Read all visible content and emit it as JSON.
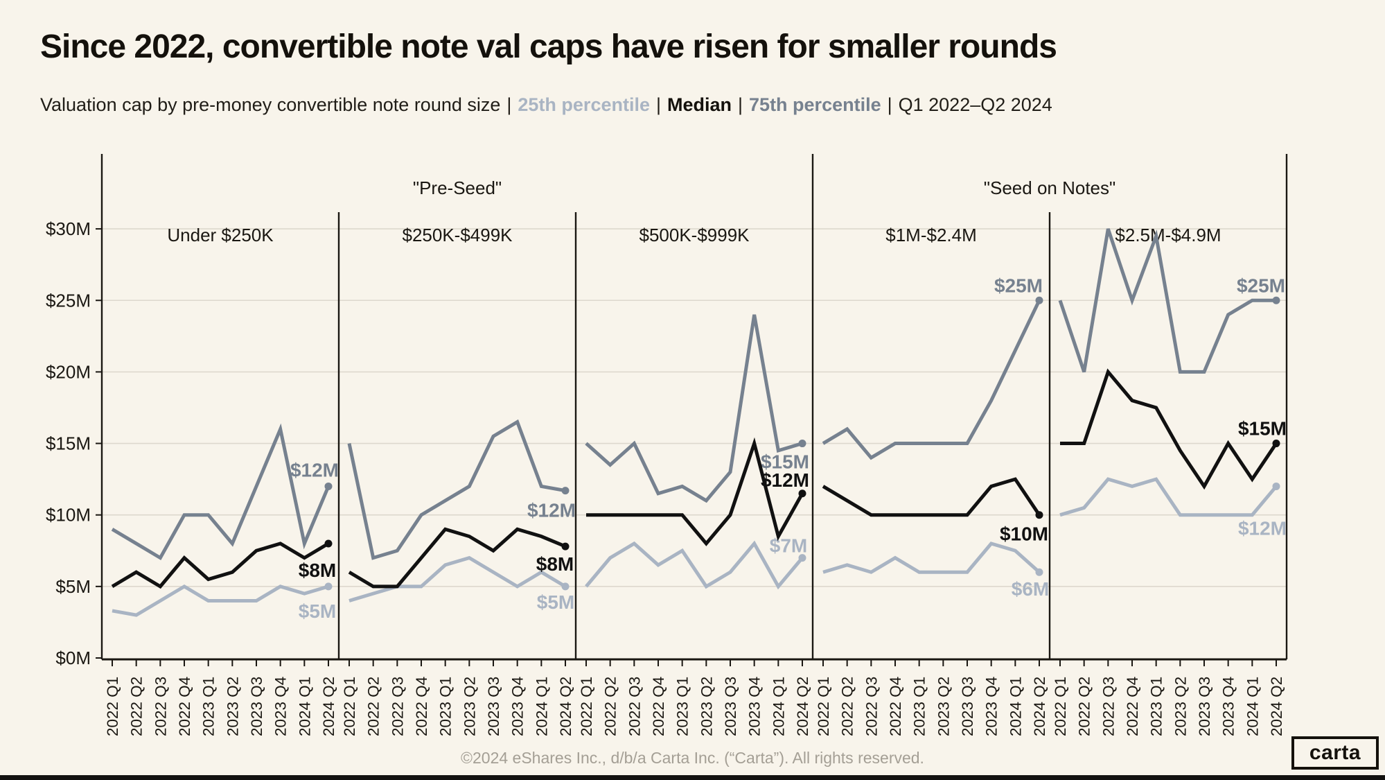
{
  "page": {
    "title": "Since 2022, convertible note val caps have risen for smaller rounds",
    "subtitle_prefix": "Valuation cap by pre-money convertible note round size",
    "separator": "|",
    "legend": {
      "p25": "25th percentile",
      "median": "Median",
      "p75": "75th percentile"
    },
    "period": "Q1 2022–Q2 2024",
    "footer": "©2024 eShares Inc., d/b/a Carta Inc. (“Carta”). All rights reserved.",
    "logo_text": "carta"
  },
  "colors": {
    "background": "#f8f4eb",
    "text": "#1a1712",
    "grid": "#ddd8cd",
    "axis": "#1a1712",
    "p75": "#76818f",
    "median": "#111111",
    "p25": "#a9b4c3",
    "footer_text": "#a49f95"
  },
  "chart_data": {
    "type": "line",
    "title": "Since 2022, convertible note val caps have risen for smaller rounds",
    "x_labels": [
      "2022 Q1",
      "2022 Q2",
      "2022 Q3",
      "2022 Q4",
      "2023 Q1",
      "2023 Q2",
      "2023 Q3",
      "2023 Q4",
      "2024 Q1",
      "2024 Q2"
    ],
    "ylim": [
      0,
      30
    ],
    "y_ticks": [
      {
        "value": 0,
        "label": "$0M"
      },
      {
        "value": 5,
        "label": "$5M"
      },
      {
        "value": 10,
        "label": "$10M"
      },
      {
        "value": 15,
        "label": "$15M"
      },
      {
        "value": 20,
        "label": "$20M"
      },
      {
        "value": 25,
        "label": "$25M"
      },
      {
        "value": 30,
        "label": "$30M"
      }
    ],
    "grid": true,
    "legend_position": "subtitle",
    "group_headers": [
      {
        "label": "\"Pre-Seed\"",
        "panels": [
          0,
          1,
          2
        ]
      },
      {
        "label": "\"Seed on Notes\"",
        "panels": [
          3,
          4
        ]
      }
    ],
    "panels": [
      {
        "header": "Under $250K",
        "series": [
          {
            "name": "75th percentile",
            "key": "p75",
            "values": [
              9,
              8,
              7,
              10,
              10,
              8,
              12,
              16,
              8,
              12
            ],
            "end_label": "$12M",
            "label_offset": [
              -20,
              -24
            ]
          },
          {
            "name": "Median",
            "key": "median",
            "values": [
              5,
              6,
              5,
              7,
              5.5,
              6,
              7.5,
              8,
              7,
              8
            ],
            "end_label": "$8M",
            "label_offset": [
              -16,
              38
            ]
          },
          {
            "name": "25th percentile",
            "key": "p25",
            "values": [
              3.3,
              3,
              4,
              5,
              4,
              4,
              4,
              5,
              4.5,
              5
            ],
            "end_label": "$5M",
            "label_offset": [
              -16,
              35
            ]
          }
        ]
      },
      {
        "header": "$250K-$499K",
        "series": [
          {
            "name": "75th percentile",
            "key": "p75",
            "values": [
              15,
              7,
              7.5,
              10,
              11,
              12,
              15.5,
              16.5,
              12,
              11.7
            ],
            "end_label": "$12M",
            "label_offset": [
              -20,
              28
            ]
          },
          {
            "name": "Median",
            "key": "median",
            "values": [
              6,
              5,
              5,
              7,
              9,
              8.5,
              7.5,
              9,
              8.5,
              7.8
            ],
            "end_label": "$8M",
            "label_offset": [
              -15,
              25
            ]
          },
          {
            "name": "25th percentile",
            "key": "p25",
            "values": [
              4,
              4.5,
              5,
              5,
              6.5,
              7,
              6,
              5,
              6,
              5
            ],
            "end_label": "$5M",
            "label_offset": [
              -14,
              22
            ]
          }
        ]
      },
      {
        "header": "$500K-$999K",
        "series": [
          {
            "name": "75th percentile",
            "key": "p75",
            "values": [
              15,
              13.5,
              15,
              11.5,
              12,
              11,
              13,
              24,
              14.5,
              15
            ],
            "end_label": "$15M",
            "label_offset": [
              -25,
              26
            ]
          },
          {
            "name": "Median",
            "key": "median",
            "values": [
              10,
              10,
              10,
              10,
              10,
              8,
              10,
              15,
              8.5,
              11.5
            ],
            "end_label": "$12M",
            "label_offset": [
              -25,
              -20
            ]
          },
          {
            "name": "25th percentile",
            "key": "p25",
            "values": [
              5,
              7,
              8,
              6.5,
              7.5,
              5,
              6,
              8,
              5,
              7
            ],
            "end_label": "$7M",
            "label_offset": [
              -20,
              -18
            ]
          }
        ]
      },
      {
        "header": "$1M-$2.4M",
        "series": [
          {
            "name": "75th percentile",
            "key": "p75",
            "values": [
              15,
              16,
              14,
              15,
              15,
              15,
              15,
              18,
              21.5,
              25
            ],
            "end_label": "$25M",
            "label_offset": [
              -30,
              -22
            ]
          },
          {
            "name": "Median",
            "key": "median",
            "values": [
              12,
              11,
              10,
              10,
              10,
              10,
              10,
              12,
              12.5,
              10
            ],
            "end_label": "$10M",
            "label_offset": [
              -22,
              27
            ]
          },
          {
            "name": "25th percentile",
            "key": "p25",
            "values": [
              6,
              6.5,
              6,
              7,
              6,
              6,
              6,
              8,
              7.5,
              6
            ],
            "end_label": "$6M",
            "label_offset": [
              -13,
              24
            ]
          }
        ]
      },
      {
        "header": "$2.5M-$4.9M",
        "series": [
          {
            "name": "75th percentile",
            "key": "p75",
            "values": [
              25,
              20,
              30,
              25,
              29.5,
              20,
              20,
              24,
              25,
              25
            ],
            "end_label": "$25M",
            "label_offset": [
              -22,
              -22
            ]
          },
          {
            "name": "Median",
            "key": "median",
            "values": [
              15,
              15,
              20,
              18,
              17.5,
              14.5,
              12,
              15,
              12.5,
              15
            ],
            "end_label": "$15M",
            "label_offset": [
              -20,
              -22
            ]
          },
          {
            "name": "25th percentile",
            "key": "p25",
            "values": [
              10,
              10.5,
              12.5,
              12,
              12.5,
              10,
              10,
              10,
              10,
              12
            ],
            "end_label": "$12M",
            "label_offset": [
              -20,
              60
            ]
          }
        ]
      }
    ]
  }
}
